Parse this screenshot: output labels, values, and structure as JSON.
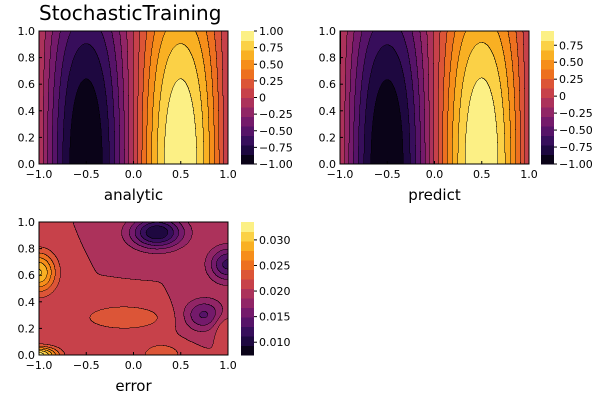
{
  "figure": {
    "title": "StochasticTraining"
  },
  "chart_data": [
    {
      "type": "heatmap",
      "subtype": "filled-contour",
      "id": "analytic",
      "xlabel": "analytic",
      "xlim": [
        -1.0,
        1.0
      ],
      "ylim": [
        0.0,
        1.0
      ],
      "x_ticks": [
        "−1.0",
        "−0.5",
        "0.0",
        "0.5",
        "1.0"
      ],
      "y_ticks": [
        "0.0",
        "0.2",
        "0.4",
        "0.6",
        "0.8",
        "1.0"
      ],
      "field": "sin(pi*x) * cosh-like profile: extremes ±1 at (±0.5, 0), magnitude decreasing with y to about ±0.65 at y=1",
      "levels": [
        -1.0,
        -0.875,
        -0.75,
        -0.625,
        -0.5,
        -0.375,
        -0.25,
        -0.125,
        0.0,
        0.125,
        0.25,
        0.375,
        0.5,
        0.625,
        0.75,
        0.875,
        1.0
      ],
      "colorbar": {
        "min": -1.0,
        "max": 1.0,
        "colormap": "inferno",
        "ticks": [
          1.0,
          0.75,
          0.5,
          0.25,
          0.0,
          -0.25,
          -0.5,
          -0.75,
          -1.0
        ],
        "tick_labels": [
          "1.00",
          "0.75",
          "0.50",
          "0.25",
          "0",
          "−0.25",
          "−0.50",
          "−0.75",
          "−1.00"
        ]
      }
    },
    {
      "type": "heatmap",
      "subtype": "filled-contour",
      "id": "predict",
      "xlabel": "predict",
      "xlim": [
        -1.0,
        1.0
      ],
      "ylim": [
        0.0,
        1.0
      ],
      "x_ticks": [
        "−1.0",
        "−0.5",
        "0.0",
        "0.5",
        "1.0"
      ],
      "y_ticks": [
        "0.0",
        "0.2",
        "0.4",
        "0.6",
        "0.8",
        "1.0"
      ],
      "field": "same shape as analytic, range approx −1.0 to 0.96",
      "colorbar": {
        "min": -1.0,
        "max": 0.96,
        "colormap": "inferno",
        "ticks": [
          0.75,
          0.5,
          0.25,
          0.0,
          -0.25,
          -0.5,
          -0.75,
          -1.0
        ],
        "tick_labels": [
          "0.75",
          "0.50",
          "0.25",
          "0",
          "−0.25",
          "−0.50",
          "−0.75",
          "−1.00"
        ]
      }
    },
    {
      "type": "heatmap",
      "subtype": "filled-contour",
      "id": "error",
      "xlabel": "error",
      "xlim": [
        -1.0,
        1.0
      ],
      "ylim": [
        0.0,
        1.0
      ],
      "x_ticks": [
        "−1.0",
        "−0.5",
        "0.0",
        "0.5",
        "1.0"
      ],
      "y_ticks": [
        "0.0",
        "0.2",
        "0.4",
        "0.6",
        "0.8",
        "1.0"
      ],
      "field": "absolute error, mostly 0.018–0.024; high ~0.03 at left edge (y≈0.6) and bottom-left corner; low ~0.008 near top-right",
      "colorbar": {
        "min": 0.0075,
        "max": 0.0335,
        "colormap": "inferno",
        "ticks": [
          0.03,
          0.025,
          0.02,
          0.015,
          0.01
        ],
        "tick_labels": [
          "0.030",
          "0.025",
          "0.020",
          "0.015",
          "0.010"
        ]
      }
    }
  ]
}
